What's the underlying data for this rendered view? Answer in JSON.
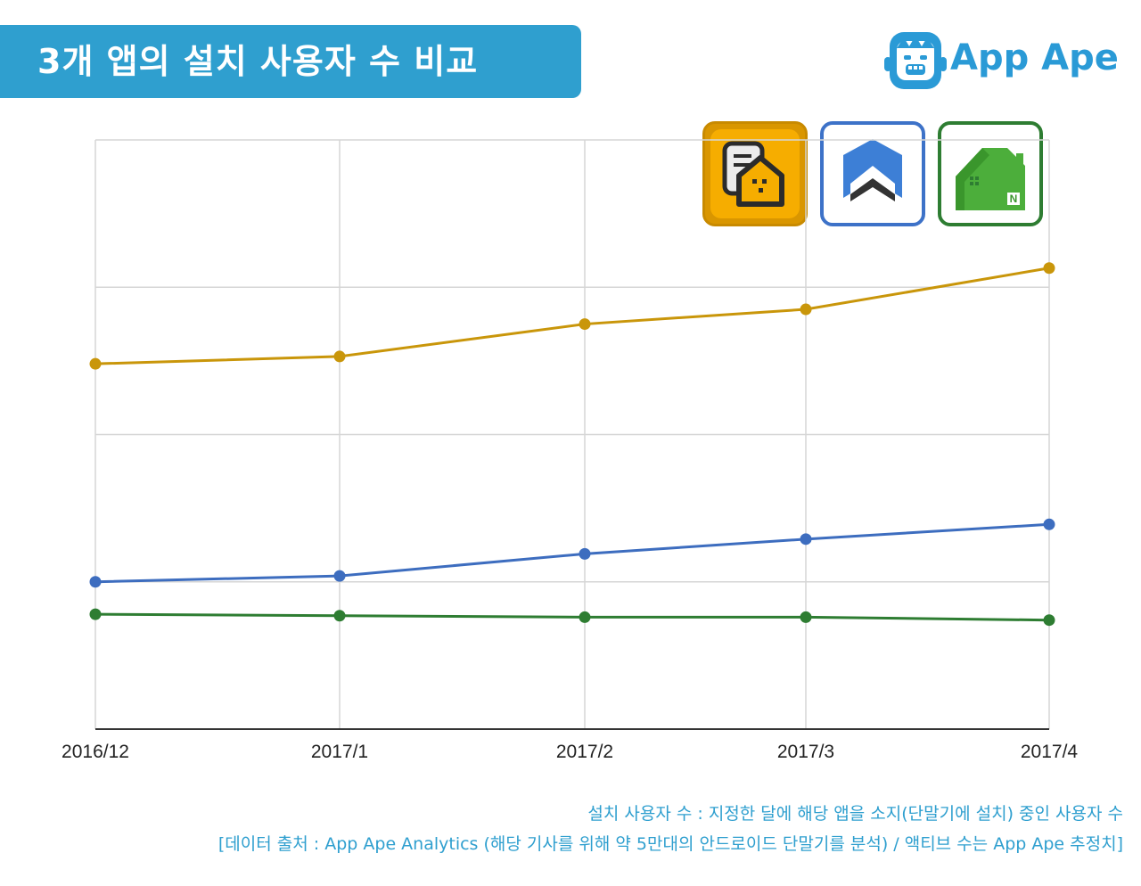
{
  "header": {
    "title": "3개 앱의 설치 사용자 수 비교"
  },
  "brand": {
    "name": "App Ape"
  },
  "legend_icons": [
    {
      "name": "orange-house-app-icon",
      "color": "#f0a800"
    },
    {
      "name": "blue-house-app-icon",
      "color": "#3d72c8"
    },
    {
      "name": "green-house-app-icon",
      "color": "#2e8a2e"
    }
  ],
  "chart_data": {
    "type": "line",
    "categories": [
      "2016/12",
      "2017/1",
      "2017/2",
      "2017/3",
      "2017/4"
    ],
    "ylim": [
      0,
      4
    ],
    "grid": true,
    "y_tick_labels": false,
    "series": [
      {
        "color": "#c9960a",
        "values": [
          2.48,
          2.53,
          2.75,
          2.85,
          3.13
        ]
      },
      {
        "color": "#3d6dbf",
        "values": [
          1.0,
          1.04,
          1.19,
          1.29,
          1.39
        ]
      },
      {
        "color": "#2e7d32",
        "values": [
          0.78,
          0.77,
          0.76,
          0.76,
          0.74
        ]
      }
    ]
  },
  "footer": {
    "line1": "설치 사용자 수 : 지정한 달에 해당 앱을 소지(단말기에 설치) 중인 사용자 수",
    "line2": "[데이터 출처 : App Ape Analytics (해당 기사를 위해 약 5만대의 안드로이드 단말기를 분석) / 액티브 수는 App Ape 추정치]"
  }
}
